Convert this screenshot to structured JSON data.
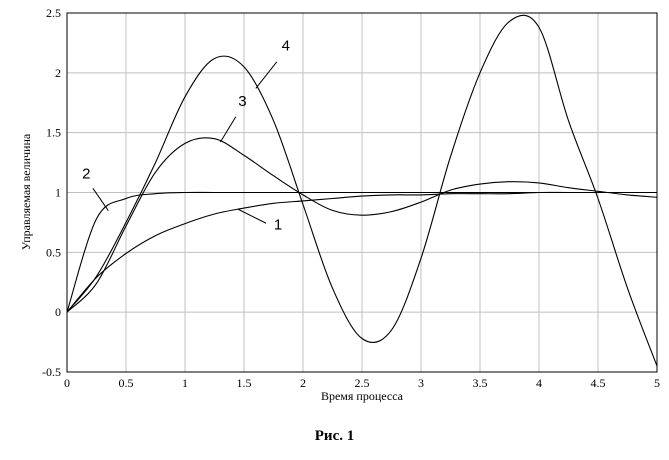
{
  "chart_data": {
    "type": "line",
    "title": "",
    "xlabel": "Время процесса",
    "ylabel": "Управляемая величина",
    "xlim": [
      0,
      5
    ],
    "ylim": [
      -0.5,
      2.5
    ],
    "x_ticks": [
      "0",
      "0.5",
      "1",
      "1.5",
      "2",
      "2.5",
      "3",
      "3.5",
      "4",
      "4.5",
      "5"
    ],
    "y_ticks": [
      "-0.5",
      "0",
      "0.5",
      "1",
      "1.5",
      "2",
      "2.5"
    ],
    "grid": true,
    "legend": "none",
    "x": [
      0,
      0.25,
      0.5,
      0.75,
      1.0,
      1.25,
      1.5,
      1.75,
      2.0,
      2.25,
      2.5,
      2.75,
      3.0,
      3.25,
      3.5,
      3.75,
      4.0,
      4.25,
      4.5,
      4.75,
      5.0
    ],
    "series": [
      {
        "name": "1",
        "values": [
          0,
          0.29,
          0.49,
          0.64,
          0.74,
          0.82,
          0.87,
          0.91,
          0.93,
          0.95,
          0.97,
          0.98,
          0.98,
          0.99,
          0.99,
          0.99,
          1.0,
          1.0,
          1.0,
          1.0,
          1.0
        ]
      },
      {
        "name": "2",
        "values": [
          0,
          0.78,
          0.95,
          0.99,
          1.0,
          1.0,
          1.0,
          1.0,
          1.0,
          1.0,
          1.0,
          1.0,
          1.0,
          1.0,
          1.0,
          1.0,
          1.0,
          1.0,
          1.0,
          1.0,
          1.0
        ]
      },
      {
        "name": "3",
        "values": [
          0,
          0.24,
          0.72,
          1.17,
          1.41,
          1.45,
          1.31,
          1.14,
          0.98,
          0.85,
          0.81,
          0.84,
          0.92,
          1.02,
          1.07,
          1.09,
          1.08,
          1.04,
          1.01,
          0.98,
          0.96
        ]
      },
      {
        "name": "4",
        "values": [
          0,
          0.3,
          0.75,
          1.25,
          1.8,
          2.12,
          2.05,
          1.6,
          0.9,
          0.2,
          -0.22,
          -0.15,
          0.45,
          1.3,
          2.0,
          2.43,
          2.38,
          1.6,
          0.95,
          0.2,
          -0.45
        ]
      }
    ],
    "annotations": [
      "1",
      "2",
      "3",
      "4"
    ]
  },
  "caption": "Рис. 1"
}
